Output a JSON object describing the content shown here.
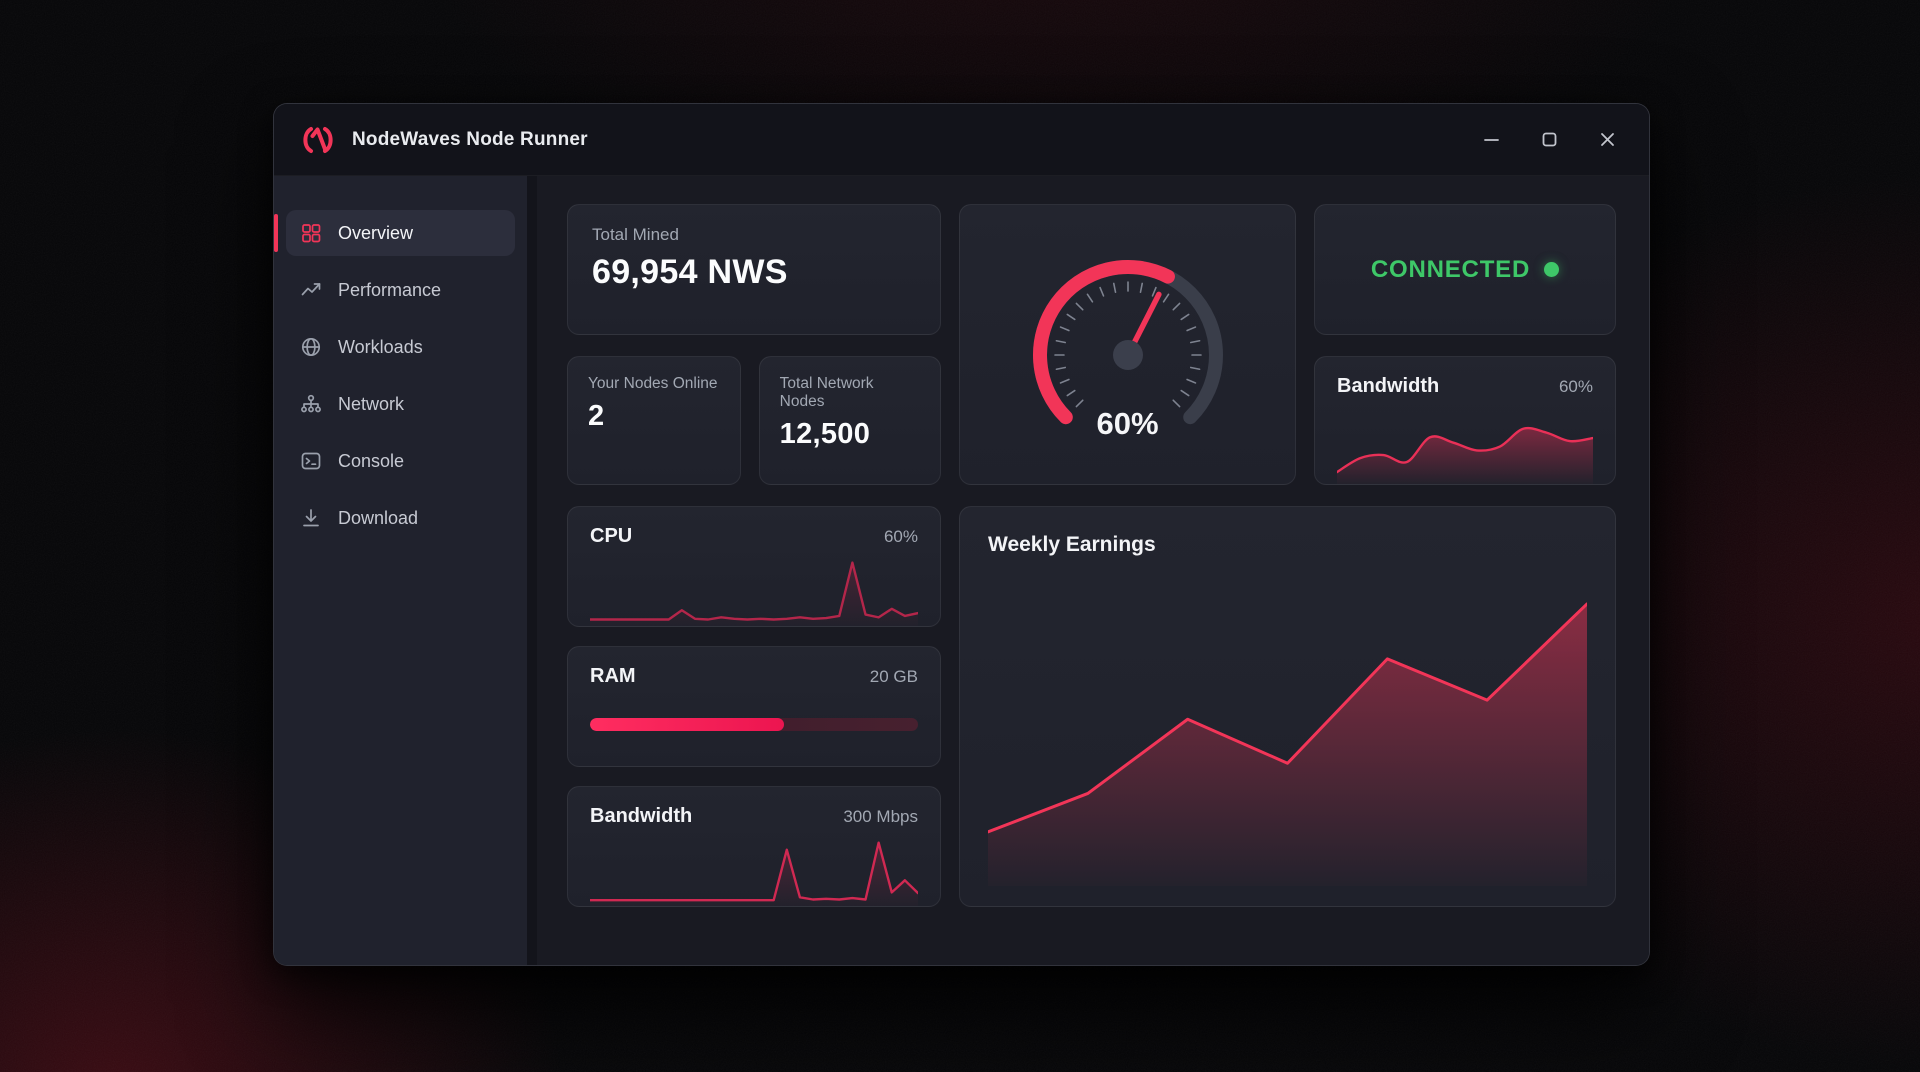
{
  "window": {
    "title": "NodeWaves Node Runner"
  },
  "sidebar": {
    "items": [
      {
        "label": "Overview",
        "icon": "grid-icon",
        "active": true
      },
      {
        "label": "Performance",
        "icon": "trend-up-icon",
        "active": false
      },
      {
        "label": "Workloads",
        "icon": "sphere-grid-icon",
        "active": false
      },
      {
        "label": "Network",
        "icon": "hierarchy-icon",
        "active": false
      },
      {
        "label": "Console",
        "icon": "terminal-icon",
        "active": false
      },
      {
        "label": "Download",
        "icon": "download-icon",
        "active": false
      }
    ]
  },
  "cards": {
    "total_mined": {
      "label": "Total Mined",
      "value": "69,954 NWS"
    },
    "nodes_online": {
      "label": "Your Nodes Online",
      "value": "2"
    },
    "network_nodes": {
      "label": "Total Network Nodes",
      "value": "12,500"
    },
    "gauge": {
      "value_label": "60%"
    },
    "connection": {
      "status": "CONNECTED"
    },
    "bandwidth_right": {
      "label": "Bandwidth",
      "value": "60%"
    },
    "cpu": {
      "label": "CPU",
      "value": "60%"
    },
    "ram": {
      "label": "RAM",
      "value": "20 GB"
    },
    "bandwidth_bottom": {
      "label": "Bandwidth",
      "value": "300 Mbps"
    },
    "weekly": {
      "title": "Weekly Earnings"
    }
  },
  "colors": {
    "accent": "#f23558",
    "accent_bright": "#ff2d60",
    "green": "#3ec768",
    "track": "#3a3e4a",
    "tick": "#7e8390",
    "cpu_line": "#b3264a",
    "bw_line": "#d02952"
  },
  "chart_data": [
    {
      "id": "utilization_gauge",
      "type": "gauge",
      "title": "Node utilization",
      "value": 60,
      "min": 0,
      "max": 100,
      "label": "60%",
      "sweep_deg": 270,
      "ticks": 25,
      "color": "#f23558",
      "track": "#3a3e4a"
    },
    {
      "id": "bandwidth_right_spark",
      "type": "area",
      "title": "Bandwidth",
      "label": "60%",
      "smooth": true,
      "ylim": [
        0,
        100
      ],
      "color": "#e93057",
      "fill_opacity": 0.45,
      "values": [
        12,
        30,
        34,
        25,
        57,
        50,
        40,
        45,
        68,
        63,
        52,
        56
      ]
    },
    {
      "id": "cpu_spark",
      "type": "line",
      "title": "CPU usage",
      "label": "60%",
      "smooth": false,
      "ylim": [
        0,
        100
      ],
      "color": "#b3264a",
      "fill_opacity": 0.25,
      "values": [
        5,
        5,
        5,
        5,
        5,
        5,
        5,
        18,
        6,
        5,
        8,
        6,
        5,
        6,
        5,
        6,
        8,
        6,
        7,
        10,
        85,
        12,
        8,
        20,
        10,
        14
      ]
    },
    {
      "id": "ram_progress",
      "type": "progress",
      "title": "RAM",
      "label": "20 GB",
      "value": 20,
      "unit": "GB",
      "percent": 59,
      "color": "#ff2d60"
    },
    {
      "id": "bandwidth_bottom_spark",
      "type": "line",
      "title": "Bandwidth",
      "label": "300 Mbps",
      "smooth": false,
      "ylim": [
        0,
        100
      ],
      "color": "#d02952",
      "fill_opacity": 0.25,
      "values": [
        4,
        4,
        4,
        4,
        4,
        4,
        4,
        4,
        4,
        4,
        4,
        4,
        4,
        4,
        4,
        75,
        8,
        5,
        6,
        5,
        7,
        5,
        85,
        15,
        32,
        14
      ]
    },
    {
      "id": "weekly_earnings",
      "type": "area",
      "title": "Weekly Earnings",
      "smooth": false,
      "ylim": [
        0,
        112
      ],
      "color": "#f23558",
      "fill_opacity": 0.5,
      "grid": false,
      "legend": "none",
      "values": [
        17,
        31,
        58,
        42,
        80,
        65,
        100
      ]
    }
  ]
}
